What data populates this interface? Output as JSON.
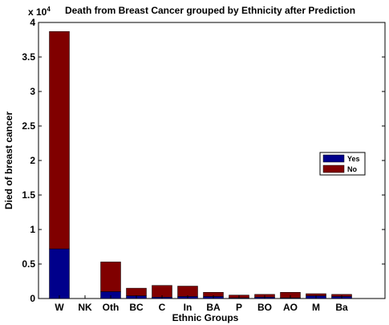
{
  "chart_data": {
    "type": "bar",
    "stacked": true,
    "title": "Death from Breast Cancer grouped by Ethnicity after Prediction",
    "xlabel": "Ethnic Groups",
    "ylabel": "Died of breast cancer",
    "y_multiplier_base": "x 10",
    "y_multiplier_exp": "4",
    "ylim": [
      0,
      4
    ],
    "yticks": [
      "0",
      "0.5",
      "1",
      "1.5",
      "2",
      "2.5",
      "3",
      "3.5",
      "4"
    ],
    "categories": [
      "W",
      "NK",
      "Oth",
      "BC",
      "C",
      "In",
      "BA",
      "P",
      "BO",
      "AO",
      "M",
      "Ba"
    ],
    "series": [
      {
        "name": "Yes",
        "color": "#00008B",
        "values": [
          0.72,
          0.0,
          0.1,
          0.04,
          0.02,
          0.03,
          0.03,
          0.01,
          0.02,
          0.01,
          0.04,
          0.03
        ]
      },
      {
        "name": "No",
        "color": "#800000",
        "values": [
          3.15,
          0.0,
          0.43,
          0.11,
          0.17,
          0.15,
          0.06,
          0.04,
          0.04,
          0.08,
          0.03,
          0.03
        ]
      }
    ],
    "legend_position": "right",
    "grid": false
  }
}
